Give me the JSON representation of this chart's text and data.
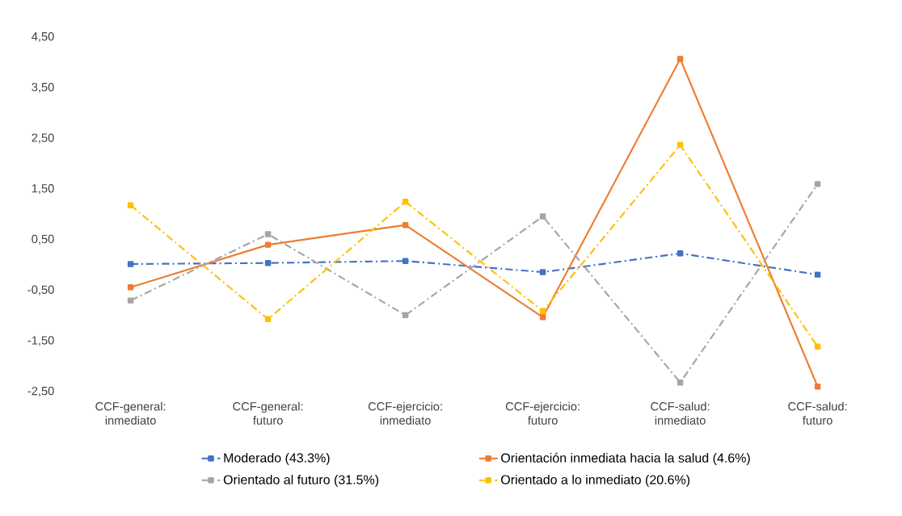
{
  "chart_data": {
    "type": "line",
    "categories": [
      "CCF-general: inmediato",
      "CCF-general: futuro",
      "CCF-ejercicio: inmediato",
      "CCF-ejercicio: futuro",
      "CCF-salud: inmediato",
      "CCF-salud: futuro"
    ],
    "series": [
      {
        "name": "Moderado (43.3%)",
        "color": "#4472c4",
        "line_style": "dashdot",
        "values": [
          0.02,
          0.04,
          0.08,
          -0.14,
          0.23,
          -0.19
        ]
      },
      {
        "name": "Orientación inmediata hacia la salud (4.6%)",
        "color": "#ed7d31",
        "line_style": "solid",
        "values": [
          -0.44,
          0.4,
          0.79,
          -1.03,
          4.07,
          -2.4
        ]
      },
      {
        "name": "Orientado al futuro (31.5%)",
        "color": "#a5a5a5",
        "line_style": "dashdot",
        "values": [
          -0.7,
          0.61,
          -0.99,
          0.96,
          -2.32,
          1.6
        ]
      },
      {
        "name": "Orientado a lo inmediato (20.6%)",
        "color": "#ffc000",
        "line_style": "dashdot",
        "values": [
          1.18,
          -1.07,
          1.25,
          -0.91,
          2.37,
          -1.61
        ]
      }
    ],
    "ylim": [
      -2.5,
      4.5
    ],
    "yticks": [
      {
        "value": -2.5,
        "label": "-2,50"
      },
      {
        "value": -1.5,
        "label": "-1,50"
      },
      {
        "value": -0.5,
        "label": "-0,50"
      },
      {
        "value": 0.5,
        "label": "0,50"
      },
      {
        "value": 1.5,
        "label": "1,50"
      },
      {
        "value": 2.5,
        "label": "2,50"
      },
      {
        "value": 3.5,
        "label": "3,50"
      },
      {
        "value": 4.5,
        "label": "4,50"
      }
    ],
    "marker": "square",
    "grid": false,
    "legend": "bottom"
  }
}
